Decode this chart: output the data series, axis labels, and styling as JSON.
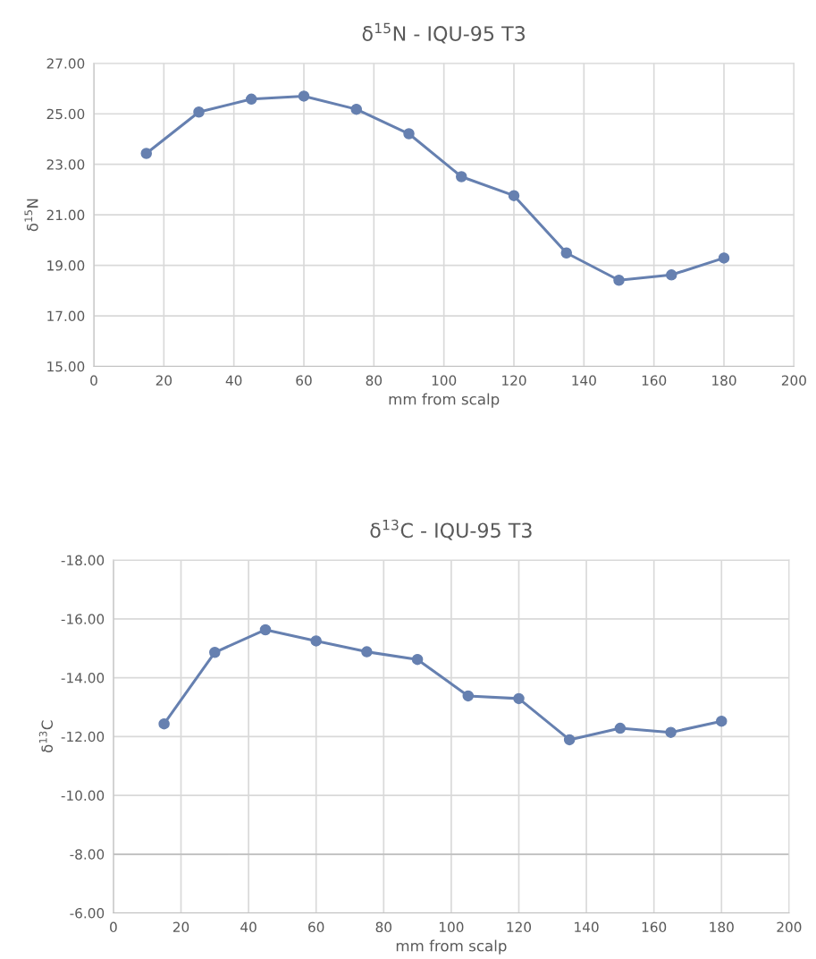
{
  "chart_data": [
    {
      "type": "line",
      "title": "δ$^{15}$N - IQU-95 T3",
      "xlabel": "mm from scalp",
      "ylabel": "δ$^{15}$N",
      "x": [
        15,
        30,
        45,
        60,
        75,
        90,
        105,
        120,
        135,
        150,
        165,
        180
      ],
      "series": [
        {
          "color": "#6680b0",
          "values": [
            23.43,
            25.07,
            25.58,
            25.7,
            25.18,
            24.21,
            22.51,
            21.76,
            19.49,
            18.41,
            18.62,
            19.29
          ]
        }
      ],
      "xlim": [
        0,
        200
      ],
      "xticks": [
        0,
        20,
        40,
        60,
        80,
        100,
        120,
        140,
        160,
        180,
        200
      ],
      "ylim": [
        15,
        27
      ],
      "yticks": [
        {
          "value": 15,
          "label": "15.00"
        },
        {
          "value": 17,
          "label": "17.00"
        },
        {
          "value": 19,
          "label": "19.00"
        },
        {
          "value": 21,
          "label": "21.00"
        },
        {
          "value": 23,
          "label": "23.00"
        },
        {
          "value": 25,
          "label": "25.00"
        },
        {
          "value": 27,
          "label": "27.00"
        }
      ],
      "grid": true,
      "marker": "circle",
      "line_style": "solid"
    },
    {
      "type": "line",
      "title": "δ$^{13}$C - IQU-95 T3",
      "xlabel": "mm from scalp",
      "ylabel": "δ$^{13}$C",
      "x": [
        15,
        30,
        45,
        60,
        75,
        90,
        105,
        120,
        135,
        150,
        165,
        180
      ],
      "series": [
        {
          "color": "#6680b0",
          "values": [
            -12.43,
            -14.86,
            -15.63,
            -15.25,
            -14.88,
            -14.62,
            -13.38,
            -13.29,
            -11.89,
            -12.28,
            -12.14,
            -12.52
          ]
        }
      ],
      "xlim": [
        0,
        200
      ],
      "xticks": [
        0,
        20,
        40,
        60,
        80,
        100,
        120,
        140,
        160,
        180,
        200
      ],
      "ylim": [
        -6,
        -18
      ],
      "yticks": [
        {
          "value": -6,
          "label": "-6.00"
        },
        {
          "value": -8,
          "label": "-8.00"
        },
        {
          "value": -10,
          "label": "-10.00"
        },
        {
          "value": -12,
          "label": "-12.00"
        },
        {
          "value": -14,
          "label": "-14.00"
        },
        {
          "value": -16,
          "label": "-16.00"
        },
        {
          "value": -18,
          "label": "-18.00"
        }
      ],
      "ref_lines": [
        {
          "axis": "y",
          "value": -8,
          "color": "#bfbfbf"
        }
      ],
      "grid": true,
      "marker": "circle",
      "line_style": "solid"
    }
  ]
}
